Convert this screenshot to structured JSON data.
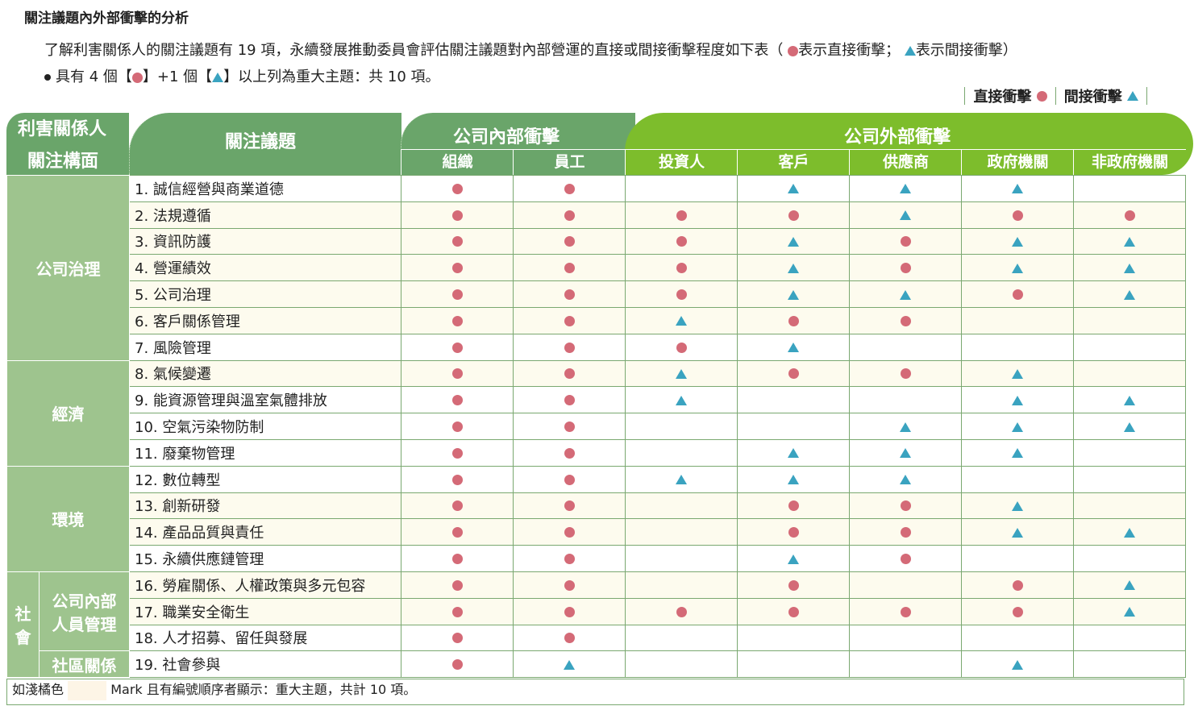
{
  "title": "關注議題內外部衝擊的分析",
  "intro": {
    "line1": "了解利害關係人的關注議題有 19 項，永續發展推動委員會評估關注議題對內部營運的直接或間接衝擊程度如下表（",
    "direct_label": "表示直接衝擊；",
    "indirect_label": "表示間接衝擊）",
    "line2_a": "具有 4 個【",
    "line2_b": "】+1 個【",
    "line2_c": "】以上列為重大主題：共 10 項。"
  },
  "legend": {
    "direct": "直接衝擊",
    "indirect": "間接衝擊"
  },
  "colors": {
    "direct": "#d46a77",
    "indirect": "#3aa3c0",
    "header_dark": "#6aa56a",
    "header_external": "#7dbd2c",
    "group_bg": "#9ec48e",
    "highlight": "#fdfbee"
  },
  "header": {
    "stakeholder_l1": "利害關係人",
    "stakeholder_l2": "關注構面",
    "topic": "關注議題",
    "internal": "公司內部衝擊",
    "external": "公司外部衝擊",
    "columns": [
      "組織",
      "員工",
      "投資人",
      "客戶",
      "供應商",
      "政府機關",
      "非政府機關"
    ]
  },
  "groups": {
    "governance": "公司治理",
    "economy": "經濟",
    "environment": "環境",
    "society": "社會",
    "society_l1": "社",
    "society_l2": "會",
    "internal_hr_l1": "公司內部",
    "internal_hr_l2": "人員管理",
    "community": "社區關係"
  },
  "rows": [
    {
      "topic": "1. 誠信經營與商業道德",
      "highlight": false,
      "marks": [
        "c",
        "c",
        "",
        "t",
        "t",
        "t",
        ""
      ]
    },
    {
      "topic": "2. 法規遵循",
      "highlight": true,
      "marks": [
        "c",
        "c",
        "c",
        "c",
        "t",
        "c",
        "c"
      ]
    },
    {
      "topic": "3. 資訊防護",
      "highlight": true,
      "marks": [
        "c",
        "c",
        "c",
        "t",
        "c",
        "t",
        "t"
      ]
    },
    {
      "topic": "4. 營運績效",
      "highlight": true,
      "marks": [
        "c",
        "c",
        "c",
        "t",
        "c",
        "t",
        "t"
      ]
    },
    {
      "topic": "5. 公司治理",
      "highlight": true,
      "marks": [
        "c",
        "c",
        "c",
        "t",
        "t",
        "c",
        "t"
      ]
    },
    {
      "topic": "6. 客戶關係管理",
      "highlight": true,
      "marks": [
        "c",
        "c",
        "t",
        "c",
        "c",
        "",
        ""
      ]
    },
    {
      "topic": "7. 風險管理",
      "highlight": false,
      "marks": [
        "c",
        "c",
        "c",
        "t",
        "",
        "",
        ""
      ]
    },
    {
      "topic": "8. 氣候變遷",
      "highlight": true,
      "marks": [
        "c",
        "c",
        "t",
        "c",
        "c",
        "t",
        ""
      ]
    },
    {
      "topic": "9. 能資源管理與溫室氣體排放",
      "highlight": false,
      "marks": [
        "c",
        "c",
        "t",
        "",
        "",
        "t",
        "t"
      ]
    },
    {
      "topic": "10. 空氣污染物防制",
      "highlight": false,
      "marks": [
        "c",
        "c",
        "",
        "",
        "t",
        "t",
        "t"
      ]
    },
    {
      "topic": "11. 廢棄物管理",
      "highlight": false,
      "marks": [
        "c",
        "c",
        "",
        "t",
        "t",
        "t",
        ""
      ]
    },
    {
      "topic": "12. 數位轉型",
      "highlight": false,
      "marks": [
        "c",
        "c",
        "t",
        "t",
        "t",
        "",
        ""
      ]
    },
    {
      "topic": "13. 創新研發",
      "highlight": true,
      "marks": [
        "c",
        "c",
        "",
        "c",
        "c",
        "t",
        ""
      ]
    },
    {
      "topic": "14. 產品品質與責任",
      "highlight": true,
      "marks": [
        "c",
        "c",
        "",
        "c",
        "c",
        "t",
        "t"
      ]
    },
    {
      "topic": "15. 永續供應鏈管理",
      "highlight": false,
      "marks": [
        "c",
        "c",
        "",
        "t",
        "c",
        "",
        ""
      ]
    },
    {
      "topic": "16. 勞雇關係、人權政策與多元包容",
      "highlight": true,
      "marks": [
        "c",
        "c",
        "",
        "c",
        "",
        "c",
        "t"
      ]
    },
    {
      "topic": "17. 職業安全衛生",
      "highlight": true,
      "marks": [
        "c",
        "c",
        "c",
        "c",
        "c",
        "c",
        "t"
      ]
    },
    {
      "topic": "18. 人才招募、留任與發展",
      "highlight": false,
      "marks": [
        "c",
        "c",
        "",
        "",
        "",
        "",
        ""
      ]
    },
    {
      "topic": "19. 社會參與",
      "highlight": false,
      "marks": [
        "c",
        "t",
        "",
        "",
        "",
        "t",
        ""
      ]
    }
  ],
  "footer": {
    "prefix": "如淺橘色",
    "suffix": "Mark 且有編號順序者顯示：重大主題，共計 10 項。"
  }
}
